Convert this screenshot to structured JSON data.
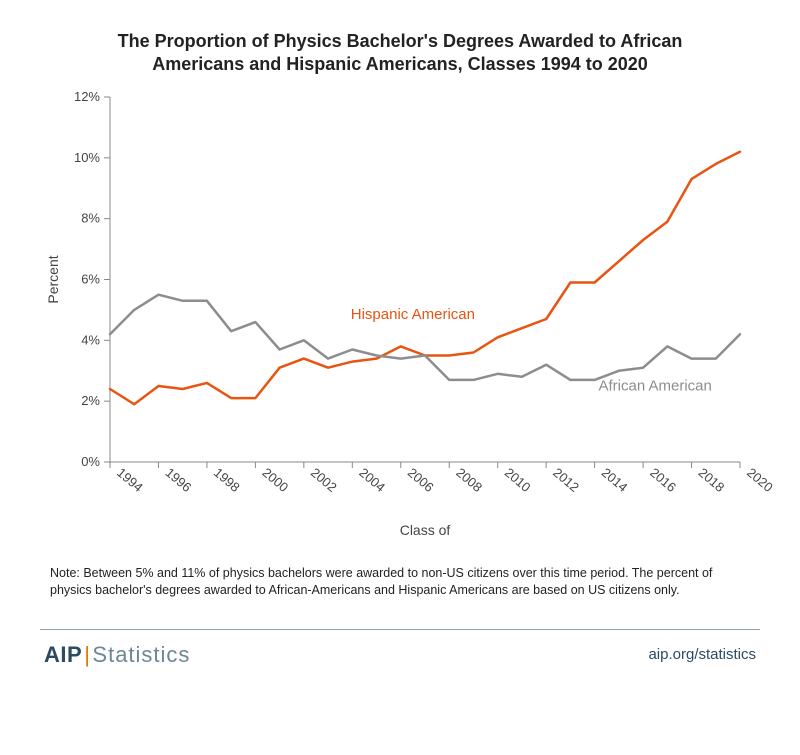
{
  "title": "The Proportion of Physics Bachelor's Degrees Awarded to African Americans and Hispanic Americans, Classes 1994 to 2020",
  "title_fontsize": 18,
  "chart": {
    "type": "line",
    "background_color": "#ffffff",
    "axis_color": "#888888",
    "tick_color": "#888888",
    "tick_fontsize": 13,
    "xlabel": "Class of",
    "ylabel": "Percent",
    "label_fontsize": 14,
    "xlim": [
      1994,
      2020
    ],
    "ylim": [
      0,
      12
    ],
    "ytick_step": 2,
    "ytick_suffix": "%",
    "xticks": [
      1994,
      1996,
      1998,
      2000,
      2002,
      2004,
      2006,
      2008,
      2010,
      2012,
      2014,
      2016,
      2018,
      2020
    ],
    "xtick_rotation_deg": 40,
    "line_width": 2.5,
    "series": [
      {
        "name": "Hispanic American",
        "label": "Hispanic American",
        "label_pos": {
          "x": 2006.5,
          "y": 4.7
        },
        "color": "#e85412",
        "years": [
          1994,
          1995,
          1996,
          1997,
          1998,
          1999,
          2000,
          2001,
          2002,
          2003,
          2004,
          2005,
          2006,
          2007,
          2008,
          2009,
          2010,
          2011,
          2012,
          2013,
          2014,
          2015,
          2016,
          2017,
          2018,
          2019,
          2020
        ],
        "values": [
          2.4,
          1.9,
          2.5,
          2.4,
          2.6,
          2.1,
          2.1,
          3.1,
          3.4,
          3.1,
          3.3,
          3.4,
          3.8,
          3.5,
          3.5,
          3.6,
          4.1,
          4.4,
          4.7,
          5.9,
          5.9,
          6.6,
          7.3,
          7.9,
          9.3,
          9.8,
          10.2
        ]
      },
      {
        "name": "African American",
        "label": "African American",
        "label_pos": {
          "x": 2016.5,
          "y": 2.35
        },
        "color": "#8b8d8f",
        "years": [
          1994,
          1995,
          1996,
          1997,
          1998,
          1999,
          2000,
          2001,
          2002,
          2003,
          2004,
          2005,
          2006,
          2007,
          2008,
          2009,
          2010,
          2011,
          2012,
          2013,
          2014,
          2015,
          2016,
          2017,
          2018,
          2019,
          2020
        ],
        "values": [
          4.2,
          5.0,
          5.5,
          5.3,
          5.3,
          4.3,
          4.6,
          3.7,
          4.0,
          3.4,
          3.7,
          3.5,
          3.4,
          3.5,
          2.7,
          2.7,
          2.9,
          2.8,
          3.2,
          2.7,
          2.7,
          3.0,
          3.1,
          3.8,
          3.4,
          3.4,
          4.2
        ]
      }
    ]
  },
  "note": "Note: Between 5% and 11% of physics bachelors were awarded to non-US citizens over this time period.  The percent of physics bachelor's degrees awarded to African-Americans and Hispanic Americans are based on US citizens only.",
  "footer": {
    "logo_aip": "AIP",
    "logo_bar": "|",
    "logo_stats": "Statistics",
    "link": "aip.org/statistics",
    "rule_color": "#8aa0ab",
    "brand_color": "#2b4a63",
    "accent_color": "#e07b00"
  }
}
